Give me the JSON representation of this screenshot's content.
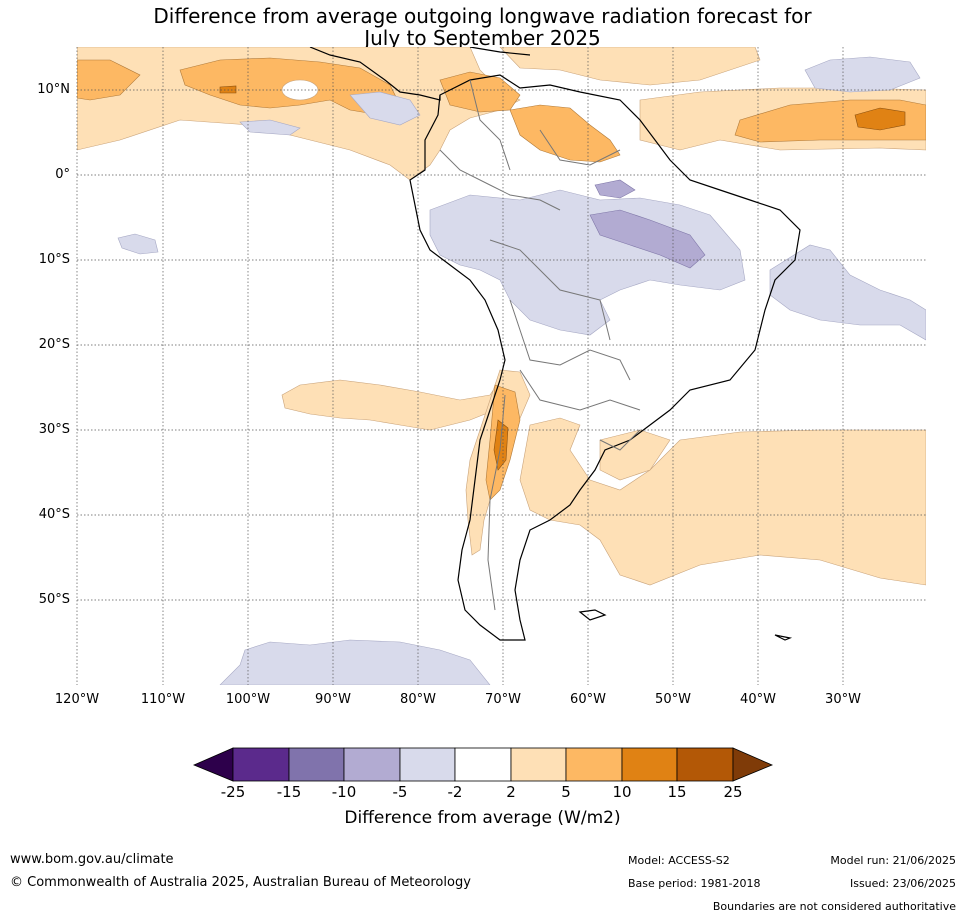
{
  "title_line1": "Difference from average outgoing longwave radiation forecast for",
  "title_line2": "July to September 2025",
  "lat_labels": [
    "10°N",
    "0°",
    "10°S",
    "20°S",
    "30°S",
    "40°S",
    "50°S"
  ],
  "lon_labels": [
    "120°W",
    "110°W",
    "100°W",
    "90°W",
    "80°W",
    "70°W",
    "60°W",
    "50°W",
    "40°W",
    "30°W"
  ],
  "colorbar": {
    "ticks": [
      "-25",
      "-15",
      "-10",
      "-5",
      "-2",
      "2",
      "5",
      "10",
      "15",
      "25"
    ],
    "colors": [
      "#2d004b",
      "#5b2a8c",
      "#8073ac",
      "#b2abd2",
      "#d8daeb",
      "#ffffff",
      "#fee0b6",
      "#fdb863",
      "#e08214",
      "#b35806",
      "#7f3b08"
    ],
    "label": "Difference from average (W/m2)"
  },
  "footer": {
    "url": "www.bom.gov.au/climate",
    "copyright": "© Commonwealth of Australia 2025, Australian Bureau of Meteorology",
    "model": "Model: ACCESS-S2",
    "base_period": "Base period: 1981-2018",
    "model_run": "Model run: 21/06/2025",
    "issued": "Issued: 23/06/2025",
    "disclaimer": "Boundaries are not considered authoritative"
  }
}
